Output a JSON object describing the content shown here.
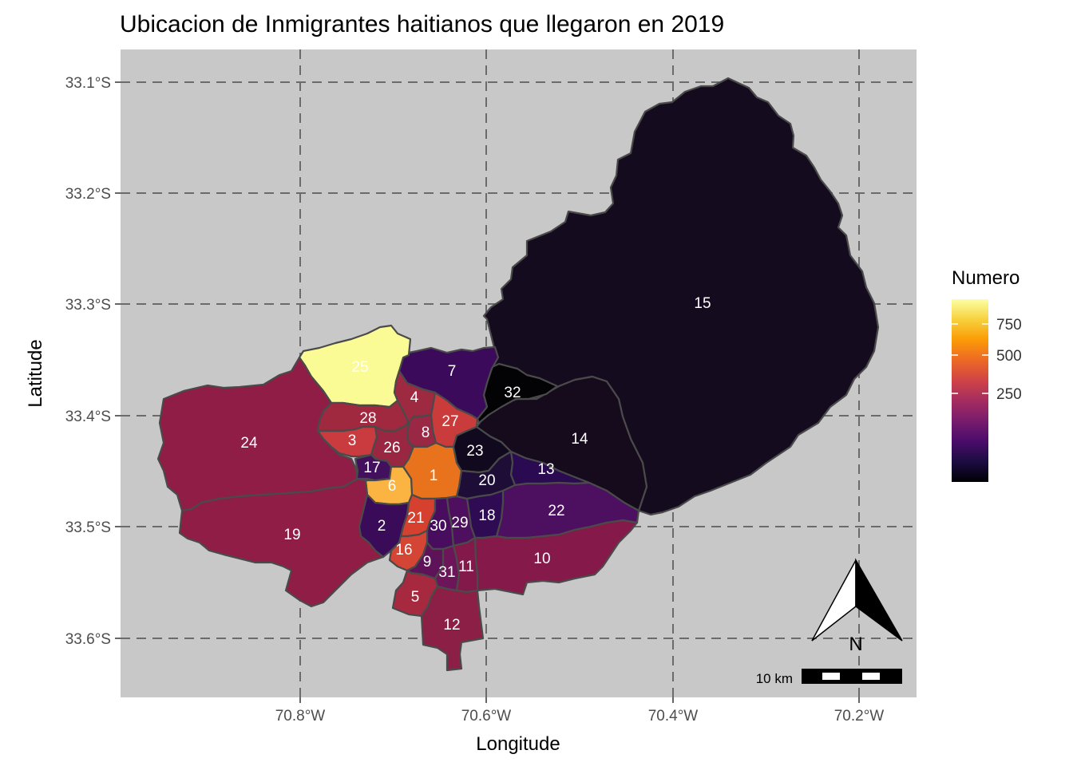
{
  "chart_data": {
    "type": "choropleth-map",
    "title": "Ubicacion de Inmigrantes haitianos que llegaron en 2019",
    "xlabel": "Longitude",
    "ylabel": "Latitude",
    "x_ticks": [
      "70.8°W",
      "70.6°W",
      "70.4°W",
      "70.2°W"
    ],
    "y_ticks": [
      "33.1°S",
      "33.2°S",
      "33.3°S",
      "33.4°S",
      "33.5°S",
      "33.6°S"
    ],
    "legend": {
      "title": "Numero",
      "ticks": [
        "750",
        "500",
        "250"
      ],
      "placement": "right",
      "palette": "inferno",
      "colors": [
        "#000004",
        "#1b0c41",
        "#4a0c6b",
        "#781c6d",
        "#a52c60",
        "#cf4446",
        "#ed6925",
        "#fb9b06",
        "#f7d13d",
        "#fcffa4"
      ]
    },
    "grid": true,
    "background": "#c8c8c8",
    "regions": [
      {
        "id": "1",
        "color": "#e8731c"
      },
      {
        "id": "2",
        "color": "#3a0b58"
      },
      {
        "id": "3",
        "color": "#c93b3e"
      },
      {
        "id": "4",
        "color": "#9e2a42"
      },
      {
        "id": "5",
        "color": "#a7293f"
      },
      {
        "id": "6",
        "color": "#fbb441"
      },
      {
        "id": "7",
        "color": "#3b0a5a"
      },
      {
        "id": "8",
        "color": "#9a2744"
      },
      {
        "id": "9",
        "color": "#5e1359"
      },
      {
        "id": "10",
        "color": "#84194a"
      },
      {
        "id": "11",
        "color": "#83194b"
      },
      {
        "id": "12",
        "color": "#8c1f46"
      },
      {
        "id": "13",
        "color": "#2a0a50"
      },
      {
        "id": "14",
        "color": "#150b1d"
      },
      {
        "id": "15",
        "color": "#150b1e"
      },
      {
        "id": "16",
        "color": "#d44535"
      },
      {
        "id": "17",
        "color": "#42105c"
      },
      {
        "id": "18",
        "color": "#2e0b52"
      },
      {
        "id": "19",
        "color": "#8f1d45"
      },
      {
        "id": "20",
        "color": "#1e0d36"
      },
      {
        "id": "21",
        "color": "#d6402f"
      },
      {
        "id": "22",
        "color": "#4d0f5f"
      },
      {
        "id": "23",
        "color": "#110a1e"
      },
      {
        "id": "24",
        "color": "#8f1d45"
      },
      {
        "id": "25",
        "color": "#fbfb96"
      },
      {
        "id": "26",
        "color": "#9a2742"
      },
      {
        "id": "27",
        "color": "#c93c3b"
      },
      {
        "id": "28",
        "color": "#a0293f"
      },
      {
        "id": "29",
        "color": "#4f0f5f"
      },
      {
        "id": "30",
        "color": "#480d5e"
      },
      {
        "id": "31",
        "color": "#6c1659"
      },
      {
        "id": "32",
        "color": "#030305"
      }
    ],
    "scale_bar_label": "10 km",
    "north_arrow_label": "N"
  }
}
